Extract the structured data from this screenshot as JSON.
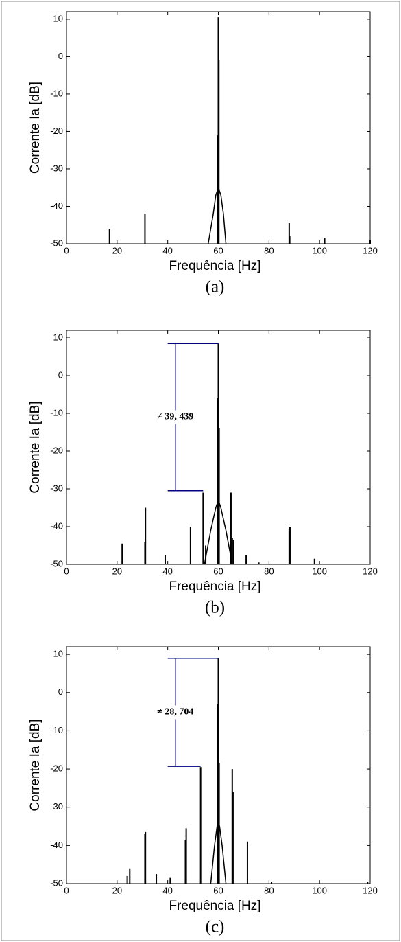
{
  "chart_data": [
    {
      "type": "stem",
      "caption": "(a)",
      "xlabel": "Frequência [Hz]",
      "ylabel": "Corrente Ia [dB]",
      "xlim": [
        0,
        120
      ],
      "xticks": [
        0,
        20,
        40,
        60,
        80,
        100,
        120
      ],
      "ylim": [
        -50,
        12
      ],
      "yticks": [
        -50,
        -40,
        -30,
        -20,
        -10,
        0,
        10
      ],
      "color": "#000000",
      "stems": {
        "x": [
          17,
          31,
          59.6,
          59.8,
          60,
          60.2,
          88,
          88.2,
          102,
          120
        ],
        "values": [
          -46,
          -42,
          -35,
          -21,
          10.5,
          -1,
          -44.5,
          -48,
          -48.5,
          -49
        ]
      },
      "envelope": {
        "x": [
          56,
          58,
          59,
          60,
          61,
          62,
          63
        ],
        "values": [
          -50,
          -42,
          -37,
          -35,
          -37,
          -42,
          -50
        ]
      }
    },
    {
      "type": "stem",
      "caption": "(b)",
      "xlabel": "Frequência [Hz]",
      "ylabel": "Corrente Ia [dB]",
      "xlim": [
        0,
        120
      ],
      "xticks": [
        0,
        20,
        40,
        60,
        80,
        100,
        120
      ],
      "ylim": [
        -50,
        12
      ],
      "yticks": [
        -50,
        -40,
        -30,
        -20,
        -10,
        0,
        10
      ],
      "color": "#000000",
      "stems": {
        "x": [
          22,
          31,
          31.2,
          39,
          49,
          54,
          55,
          59.8,
          60,
          60.3,
          65,
          65.5,
          66,
          71,
          76,
          88,
          88.3,
          98
        ],
        "values": [
          -44.5,
          -44,
          -35,
          -47.5,
          -40,
          -31,
          -45,
          -6,
          8.5,
          -14,
          -31,
          -43,
          -43.5,
          -47.5,
          -49.5,
          -40.5,
          -40,
          -48.5
        ]
      },
      "envelope": {
        "x": [
          54.5,
          57,
          59,
          60,
          61,
          63,
          65.5
        ],
        "values": [
          -50,
          -41,
          -35,
          -33,
          -35,
          -41,
          -50
        ]
      },
      "annotation": {
        "text": "≠ 39, 439",
        "color": "#000080",
        "x": 43,
        "x1": 40,
        "top": 8.5,
        "bottom": -30.5,
        "top_x2": 60,
        "bottom_x2": 54
      }
    },
    {
      "type": "stem",
      "caption": "(c)",
      "xlabel": "Frequência [Hz]",
      "ylabel": "Corrente Ia [dB]",
      "xlim": [
        0,
        120
      ],
      "xticks": [
        0,
        20,
        40,
        60,
        80,
        100,
        120
      ],
      "ylim": [
        -50,
        12
      ],
      "yticks": [
        -50,
        -40,
        -30,
        -20,
        -10,
        0,
        10
      ],
      "color": "#000000",
      "stems": {
        "x": [
          24,
          25,
          31,
          31.2,
          35.5,
          41,
          47,
          47.3,
          53,
          59.8,
          60,
          60.3,
          65.5,
          65.8,
          71.5,
          81,
          119
        ],
        "values": [
          -48,
          -46,
          -37,
          -36.5,
          -47.5,
          -48.5,
          -38.5,
          -35.5,
          -19.5,
          -3,
          9,
          -18.5,
          -20,
          -26,
          -39,
          -49.5,
          -49.5
        ]
      },
      "envelope": {
        "x": [
          57,
          58.5,
          59.5,
          60,
          60.5,
          61.5,
          63
        ],
        "values": [
          -50,
          -40,
          -35,
          -34,
          -35,
          -40,
          -50
        ]
      },
      "annotation": {
        "text": "≠ 28, 704",
        "color": "#000080",
        "x": 43,
        "x1": 40,
        "top": 9,
        "bottom": -19.3,
        "top_x2": 60,
        "bottom_x2": 53
      }
    }
  ]
}
